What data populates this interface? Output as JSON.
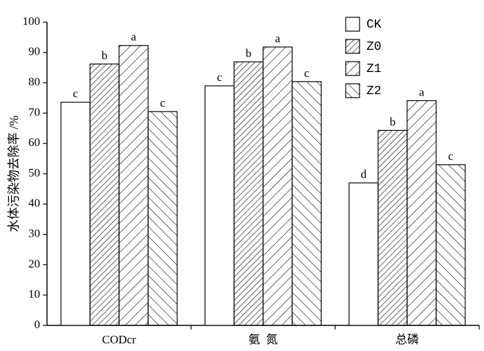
{
  "chart_data": {
    "type": "bar",
    "y_label": "水体污染物去除率 /%",
    "categories": [
      "CODcr",
      "氨  氮",
      "总磷"
    ],
    "series": [
      {
        "name": "CK",
        "color": "#ffffff",
        "hatch": "none",
        "values": [
          73.6,
          79.0,
          47.0
        ],
        "letters": [
          "c",
          "c",
          "d"
        ]
      },
      {
        "name": "Z0",
        "color": "#ffffff",
        "hatch": "//",
        "values": [
          86.2,
          86.9,
          64.3
        ],
        "letters": [
          "b",
          "b",
          "b"
        ]
      },
      {
        "name": "Z1",
        "color": "#ffffff",
        "hatch": "/",
        "values": [
          92.3,
          91.8,
          74.1
        ],
        "letters": [
          "a",
          "a",
          "a"
        ]
      },
      {
        "name": "Z2",
        "color": "#ffffff",
        "hatch": "\\",
        "values": [
          70.5,
          80.4,
          53.0
        ],
        "letters": [
          "c",
          "c",
          "c"
        ]
      }
    ],
    "ylim": [
      0,
      100
    ],
    "yticks": [
      0,
      10,
      20,
      30,
      40,
      50,
      60,
      70,
      80,
      90,
      100
    ],
    "grid": false,
    "legend": "upper right"
  }
}
